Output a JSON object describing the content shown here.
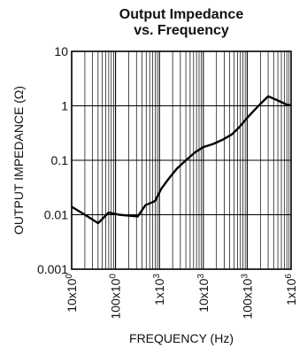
{
  "chart_data": {
    "type": "line",
    "title_line1": "Output Impedance",
    "title_line2": "vs. Frequency",
    "xlabel": "FREQUENCY (Hz)",
    "ylabel": "OUTPUT IMPEDANCE (Ω)",
    "x_scale": "log",
    "y_scale": "log",
    "xlim": [
      10,
      1000000
    ],
    "ylim": [
      0.001,
      10
    ],
    "grid": true,
    "x_ticks": [
      {
        "value": 10,
        "label": "10x10",
        "exp": "0"
      },
      {
        "value": 100,
        "label": "100x10",
        "exp": "0"
      },
      {
        "value": 1000,
        "label": "1x10",
        "exp": "3"
      },
      {
        "value": 10000,
        "label": "10x10",
        "exp": "3"
      },
      {
        "value": 100000,
        "label": "100x10",
        "exp": "3"
      },
      {
        "value": 1000000,
        "label": "1x10",
        "exp": "6"
      }
    ],
    "y_ticks": [
      {
        "value": 10,
        "label": "10"
      },
      {
        "value": 1,
        "label": "1"
      },
      {
        "value": 0.1,
        "label": "0.1"
      },
      {
        "value": 0.01,
        "label": "0.01"
      },
      {
        "value": 0.001,
        "label": "0.001"
      }
    ],
    "series": [
      {
        "x": [
          10,
          20,
          40,
          70,
          120,
          320,
          480,
          700,
          800,
          1100,
          1600,
          2500,
          4000,
          6500,
          10000,
          17000,
          28000,
          45000,
          65000,
          100000,
          170000,
          300000,
          500000,
          800000,
          1000000
        ],
        "y": [
          0.014,
          0.01,
          0.007,
          0.011,
          0.01,
          0.0093,
          0.015,
          0.017,
          0.018,
          0.03,
          0.045,
          0.07,
          0.1,
          0.14,
          0.175,
          0.2,
          0.24,
          0.3,
          0.4,
          0.6,
          0.95,
          1.5,
          1.25,
          1.05,
          1.02
        ]
      }
    ]
  }
}
